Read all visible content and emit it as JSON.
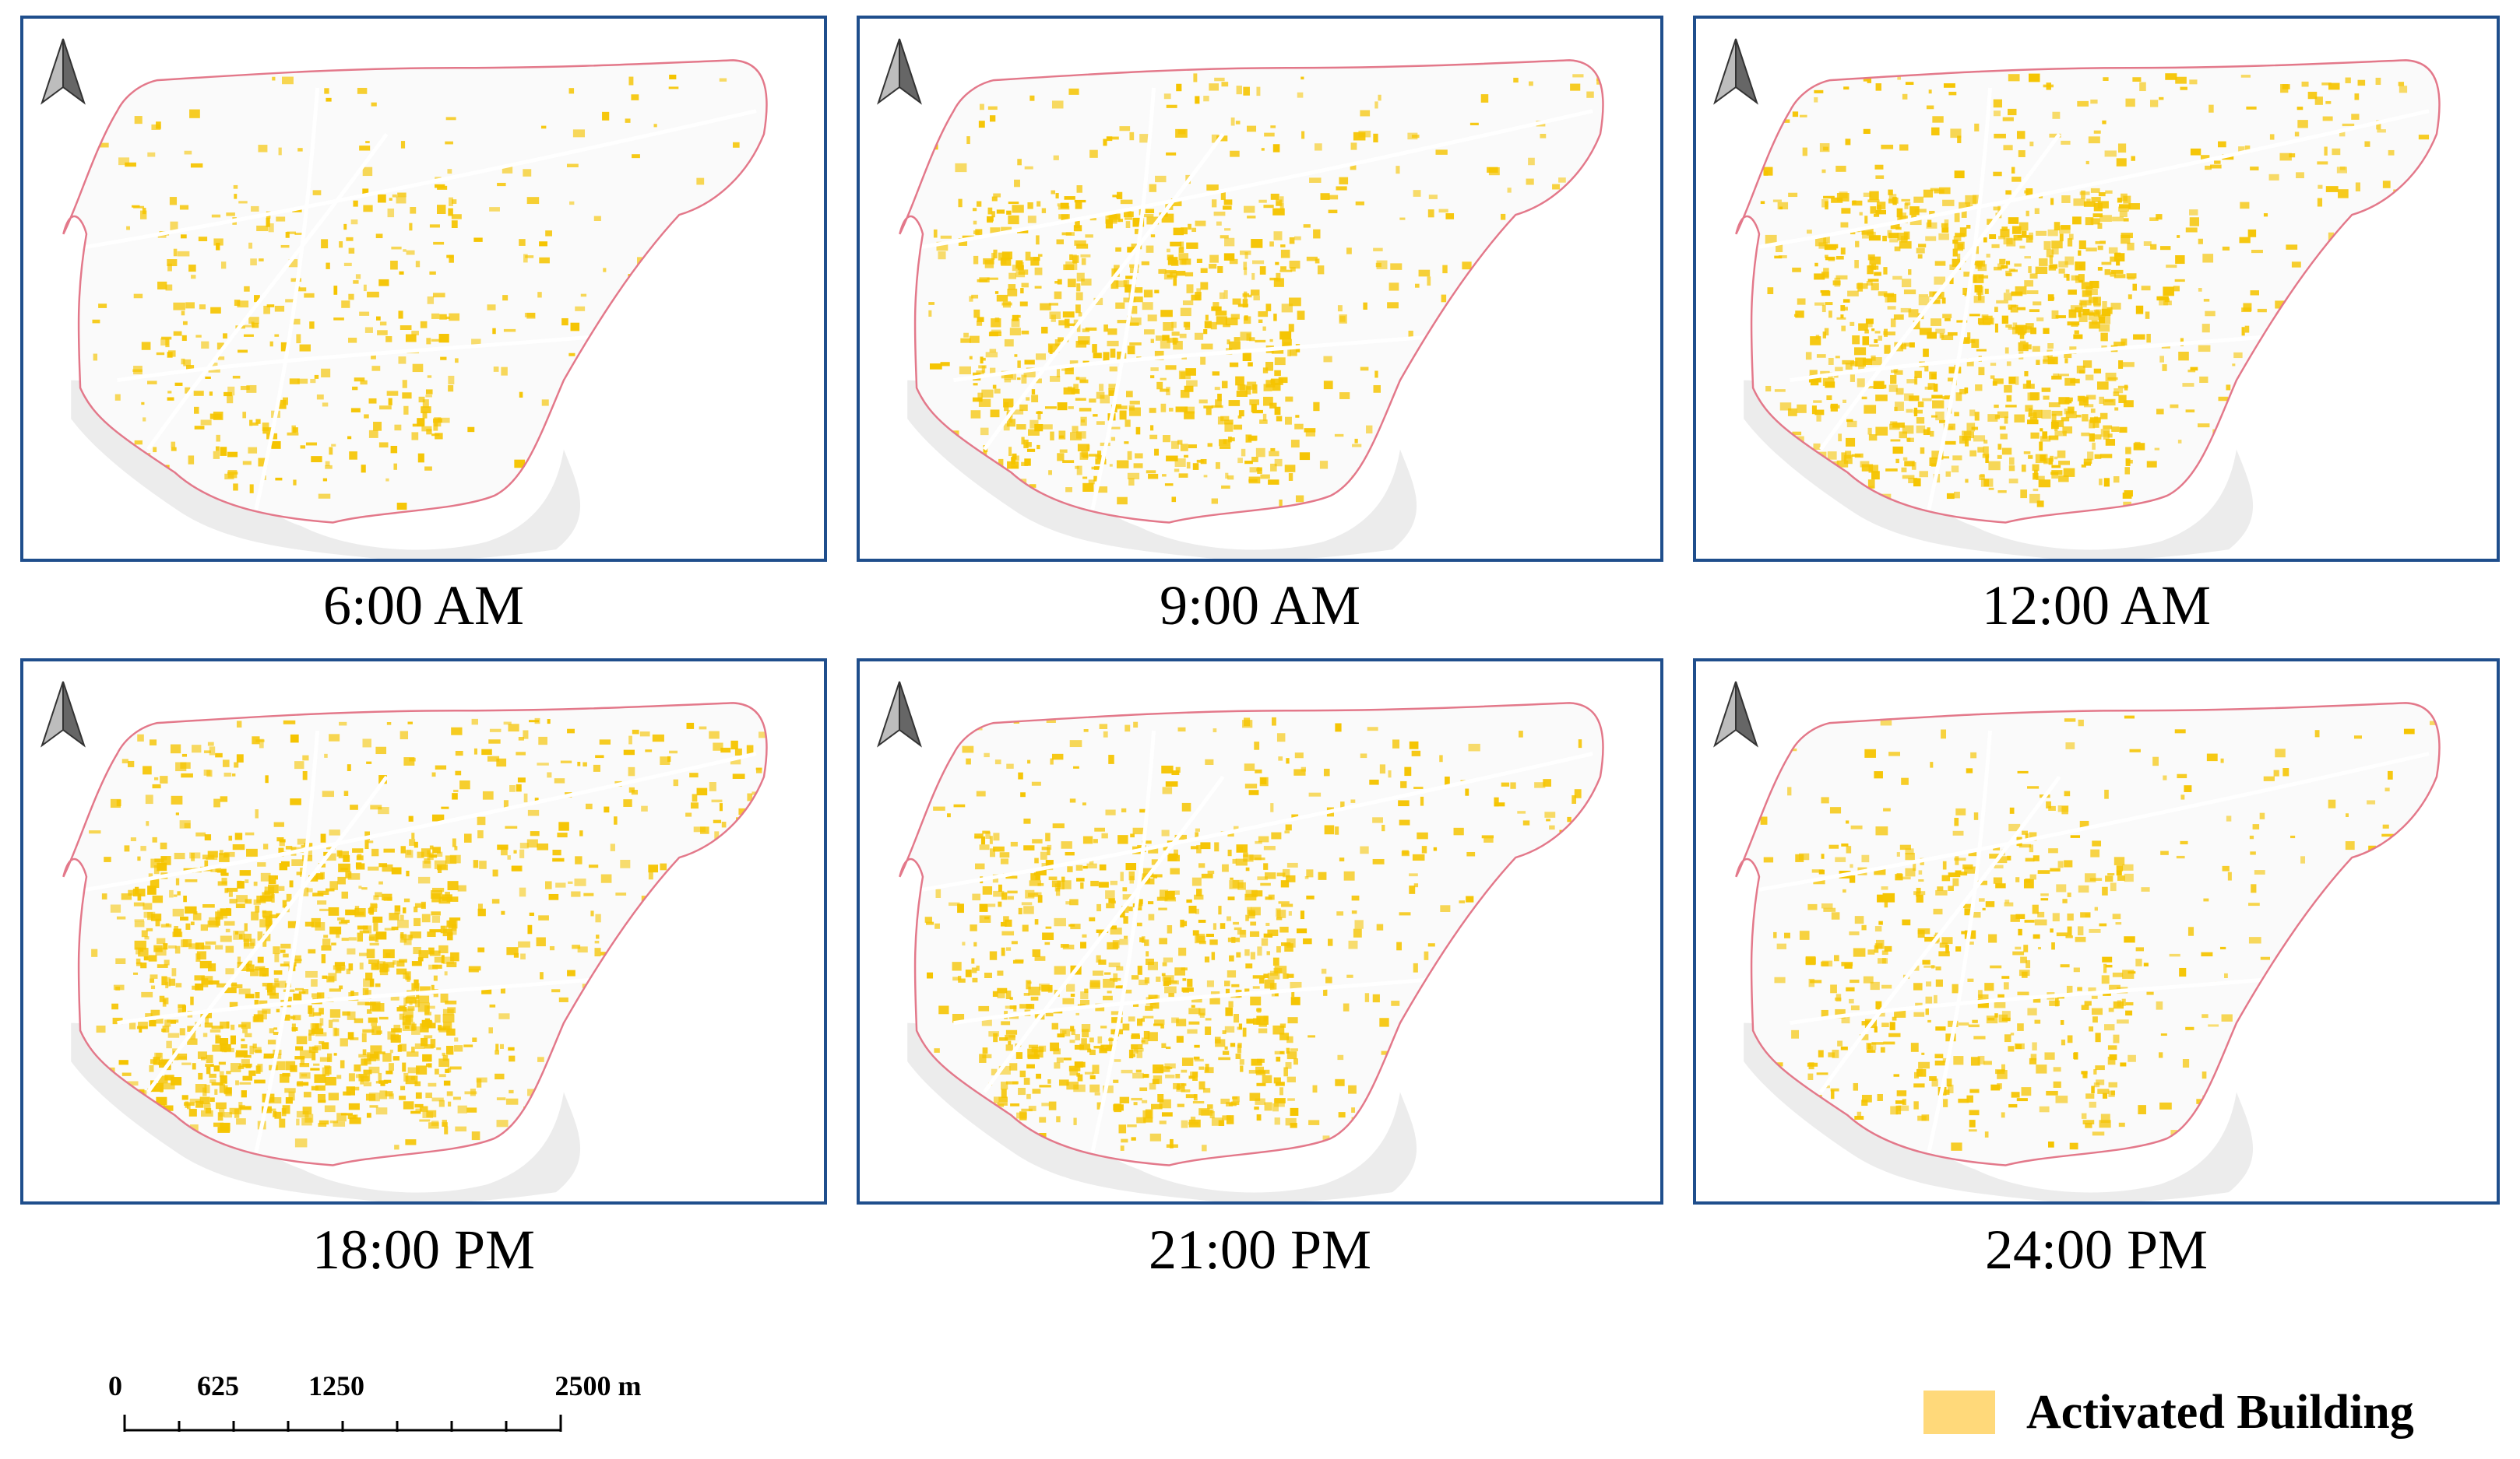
{
  "panels": [
    {
      "label": "6:00 AM",
      "density": 0.3
    },
    {
      "label": "9:00 AM",
      "density": 0.62
    },
    {
      "label": "12:00 AM",
      "density": 0.78
    },
    {
      "label": "18:00 PM",
      "density": 0.95
    },
    {
      "label": "21:00 PM",
      "density": 0.7
    },
    {
      "label": "24:00 PM",
      "density": 0.42
    }
  ],
  "scale_bar": {
    "ticks": [
      "0",
      "625",
      "1250",
      "2500 m"
    ]
  },
  "legend": {
    "label": "Activated Building",
    "color": "#ffd97a"
  },
  "colors": {
    "frame": "#1f4e8c",
    "boundary": "#e3788a",
    "building": "#f5c400",
    "background_shape": "#ececec"
  }
}
